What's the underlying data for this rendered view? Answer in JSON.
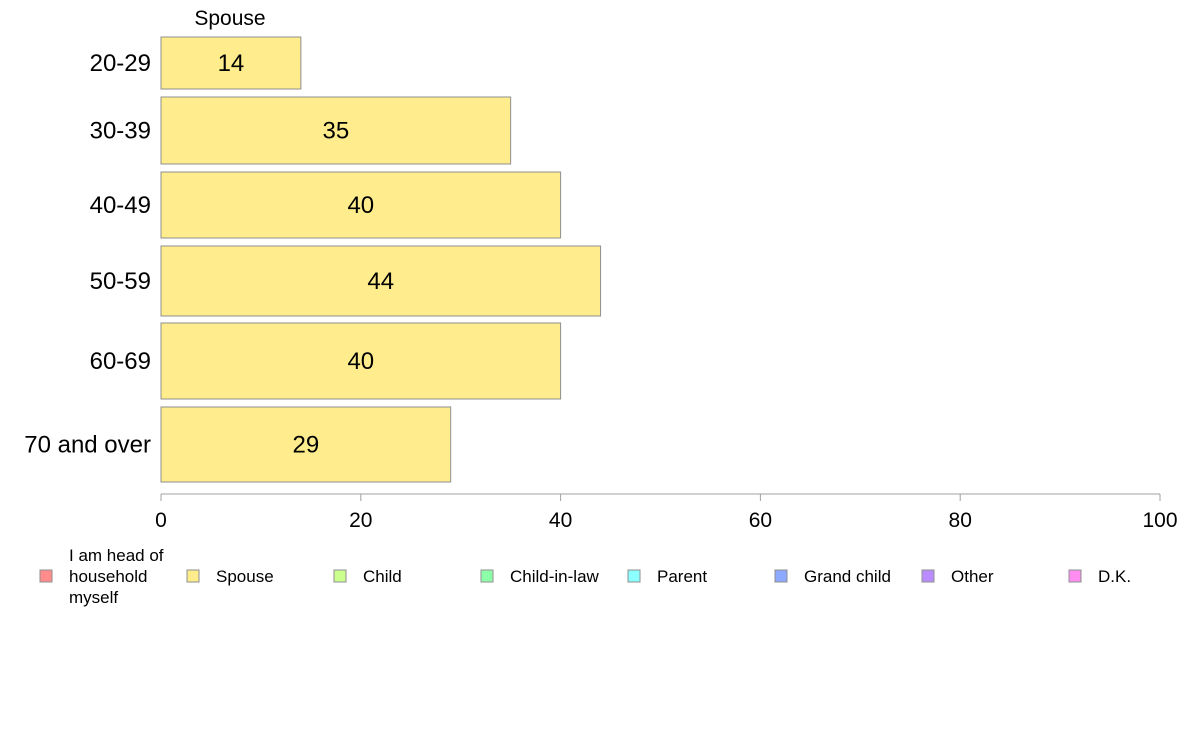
{
  "chart_data": {
    "type": "bar",
    "orientation": "horizontal",
    "subtitle": "Spouse",
    "categories": [
      "20-29",
      "30-39",
      "40-49",
      "50-59",
      "60-69",
      "70 and over"
    ],
    "series": [
      {
        "name": "Spouse",
        "values": [
          14,
          35,
          40,
          44,
          40,
          29
        ],
        "color": "#ffed8d"
      }
    ],
    "xlim": [
      0,
      100
    ],
    "x_ticks": [
      0,
      20,
      40,
      60,
      80,
      100
    ],
    "xlabel": "",
    "ylabel": "",
    "grid": false,
    "legend_position": "bottom",
    "legend": [
      {
        "label": "I am head of household myself",
        "color": "#ff8c8c",
        "lines": [
          "I am head of",
          "household",
          "myself"
        ]
      },
      {
        "label": "Spouse",
        "color": "#ffed8d"
      },
      {
        "label": "Child",
        "color": "#ccff8c"
      },
      {
        "label": "Child-in-law",
        "color": "#8cffa8"
      },
      {
        "label": "Parent",
        "color": "#8cffff"
      },
      {
        "label": "Grand child",
        "color": "#8caaff"
      },
      {
        "label": "Other",
        "color": "#b98cff"
      },
      {
        "label": "D.K.",
        "color": "#ff8cf0"
      }
    ],
    "bar_border_color": "#8f8f8f",
    "axis_color": "#a0a0a0"
  }
}
